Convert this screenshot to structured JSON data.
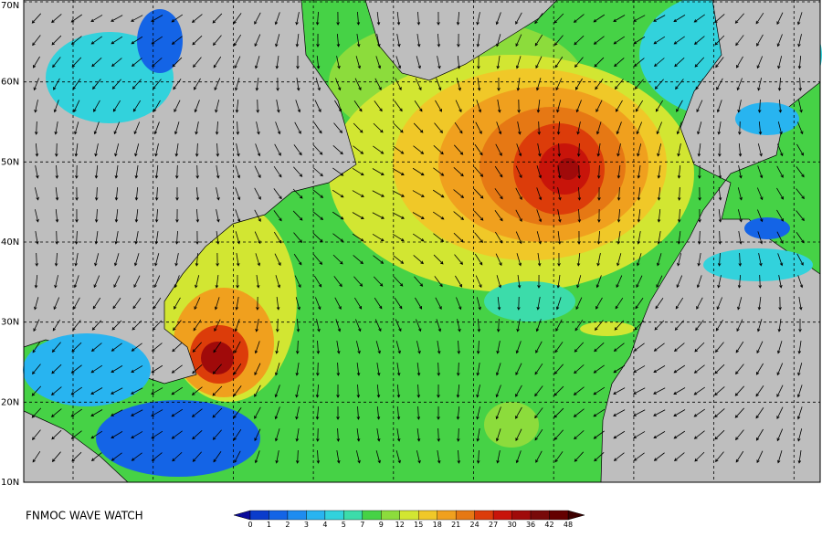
{
  "map": {
    "lat_labels": [
      "70N",
      "60N",
      "50N",
      "40N",
      "30N",
      "20N",
      "10N"
    ],
    "title": "FNMOC WAVE WATCH",
    "legend": {
      "labels": [
        "0",
        "1",
        "2",
        "3",
        "4",
        "5",
        "7",
        "9",
        "12",
        "15",
        "18",
        "21",
        "24",
        "27",
        "30",
        "36",
        "42",
        "48"
      ],
      "colors": [
        "#0a3ccc",
        "#1464e6",
        "#1e8cf0",
        "#28b4f0",
        "#32d2dc",
        "#3cdcaa",
        "#46d246",
        "#8cdc3c",
        "#d2e632",
        "#f0c828",
        "#f0a01e",
        "#e67814",
        "#dc3c0a",
        "#c8140a",
        "#a00a0a",
        "#780a0a",
        "#640000"
      ]
    }
  }
}
